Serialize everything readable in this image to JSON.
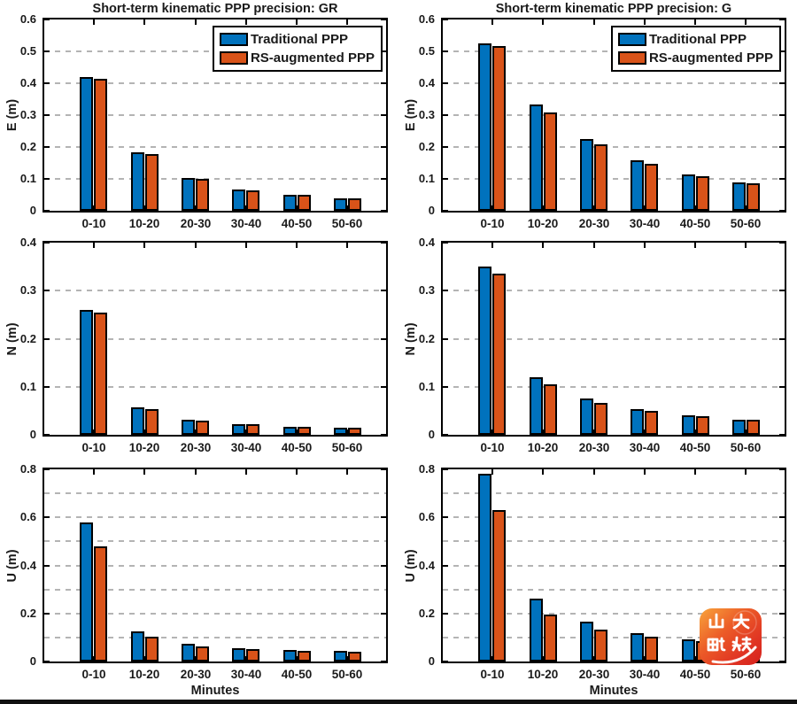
{
  "figure": {
    "left_title": "Short-term kinematic PPP precision: GR",
    "right_title": "Short-term kinematic PPP precision: G",
    "x_axis_label": "Minutes"
  },
  "colors": {
    "traditional_ppp": "#0072BD",
    "rs_augmented_ppp": "#D95319",
    "grid": "#b4b4b4",
    "axis": "#000000",
    "watermark_gradient_start": "#f8a43b",
    "watermark_gradient_end": "#d5201c"
  },
  "legend": {
    "items": [
      "Traditional PPP",
      "RS-augmented PPP"
    ]
  },
  "watermark": {
    "text": "山大融媒",
    "line1": "山大",
    "line2": "融媒"
  },
  "chart_data": [
    {
      "type": "bar",
      "title": "Short-term kinematic PPP precision: GR",
      "ylabel": "E (m)",
      "xlabel": "",
      "categories": [
        "0-10",
        "10-20",
        "20-30",
        "30-40",
        "40-50",
        "50-60"
      ],
      "series": [
        {
          "name": "Traditional PPP",
          "color": "#0072BD",
          "values": [
            0.42,
            0.183,
            0.103,
            0.066,
            0.05,
            0.04
          ]
        },
        {
          "name": "RS-augmented PPP",
          "color": "#D95319",
          "values": [
            0.415,
            0.177,
            0.099,
            0.064,
            0.049,
            0.039
          ]
        }
      ],
      "ylim": [
        0,
        0.6
      ],
      "yticks": [
        "0",
        "0.1",
        "0.2",
        "0.3",
        "0.4",
        "0.5",
        "0.6"
      ],
      "grid_y": [
        0.1,
        0.2,
        0.3,
        0.4,
        0.5
      ],
      "legend": true
    },
    {
      "type": "bar",
      "title": "Short-term kinematic PPP precision: G",
      "ylabel": "E (m)",
      "xlabel": "",
      "categories": [
        "0-10",
        "10-20",
        "20-30",
        "30-40",
        "40-50",
        "50-60"
      ],
      "series": [
        {
          "name": "Traditional PPP",
          "color": "#0072BD",
          "values": [
            0.524,
            0.332,
            0.225,
            0.157,
            0.113,
            0.088
          ]
        },
        {
          "name": "RS-augmented PPP",
          "color": "#D95319",
          "values": [
            0.516,
            0.309,
            0.207,
            0.147,
            0.108,
            0.085
          ]
        }
      ],
      "ylim": [
        0,
        0.6
      ],
      "yticks": [
        "0",
        "0.1",
        "0.2",
        "0.3",
        "0.4",
        "0.5",
        "0.6"
      ],
      "grid_y": [
        0.1,
        0.2,
        0.3,
        0.4,
        0.5
      ],
      "legend": true
    },
    {
      "type": "bar",
      "title": "",
      "ylabel": "N (m)",
      "xlabel": "",
      "categories": [
        "0-10",
        "10-20",
        "20-30",
        "30-40",
        "40-50",
        "50-60"
      ],
      "series": [
        {
          "name": "Traditional PPP",
          "color": "#0072BD",
          "values": [
            0.26,
            0.057,
            0.031,
            0.022,
            0.017,
            0.015
          ]
        },
        {
          "name": "RS-augmented PPP",
          "color": "#D95319",
          "values": [
            0.255,
            0.053,
            0.03,
            0.022,
            0.017,
            0.015
          ]
        }
      ],
      "ylim": [
        0,
        0.4
      ],
      "yticks": [
        "0",
        "0.1",
        "0.2",
        "0.3",
        "0.4"
      ],
      "grid_y": [
        0.1,
        0.2,
        0.3
      ],
      "legend": false
    },
    {
      "type": "bar",
      "title": "",
      "ylabel": "N (m)",
      "xlabel": "",
      "categories": [
        "0-10",
        "10-20",
        "20-30",
        "30-40",
        "40-50",
        "50-60"
      ],
      "series": [
        {
          "name": "Traditional PPP",
          "color": "#0072BD",
          "values": [
            0.351,
            0.12,
            0.075,
            0.053,
            0.041,
            0.032
          ]
        },
        {
          "name": "RS-augmented PPP",
          "color": "#D95319",
          "values": [
            0.336,
            0.105,
            0.067,
            0.05,
            0.039,
            0.031
          ]
        }
      ],
      "ylim": [
        0,
        0.4
      ],
      "yticks": [
        "0",
        "0.1",
        "0.2",
        "0.3",
        "0.4"
      ],
      "grid_y": [
        0.1,
        0.2,
        0.3
      ],
      "legend": false
    },
    {
      "type": "bar",
      "title": "",
      "ylabel": "U (m)",
      "xlabel": "Minutes",
      "categories": [
        "0-10",
        "10-20",
        "20-30",
        "30-40",
        "40-50",
        "50-60"
      ],
      "series": [
        {
          "name": "Traditional PPP",
          "color": "#0072BD",
          "values": [
            0.58,
            0.125,
            0.073,
            0.056,
            0.048,
            0.043
          ]
        },
        {
          "name": "RS-augmented PPP",
          "color": "#D95319",
          "values": [
            0.48,
            0.105,
            0.064,
            0.052,
            0.046,
            0.042
          ]
        }
      ],
      "ylim": [
        0,
        0.8
      ],
      "yticks": [
        "0",
        "0.2",
        "0.4",
        "0.6",
        "0.8"
      ],
      "grid_y": [
        0.1,
        0.2,
        0.3,
        0.4,
        0.5,
        0.6,
        0.7
      ],
      "legend": false
    },
    {
      "type": "bar",
      "title": "",
      "ylabel": "U (m)",
      "xlabel": "Minutes",
      "categories": [
        "0-10",
        "10-20",
        "20-30",
        "30-40",
        "40-50",
        "50-60"
      ],
      "series": [
        {
          "name": "Traditional PPP",
          "color": "#0072BD",
          "values": [
            0.781,
            0.262,
            0.165,
            0.118,
            0.092,
            0.08
          ]
        },
        {
          "name": "RS-augmented PPP",
          "color": "#D95319",
          "values": [
            0.63,
            0.195,
            0.133,
            0.105,
            0.086,
            0.076
          ]
        }
      ],
      "ylim": [
        0,
        0.8
      ],
      "yticks": [
        "0",
        "0.2",
        "0.4",
        "0.6",
        "0.8"
      ],
      "grid_y": [
        0.1,
        0.2,
        0.3,
        0.4,
        0.5,
        0.6,
        0.7
      ],
      "legend": false
    }
  ]
}
